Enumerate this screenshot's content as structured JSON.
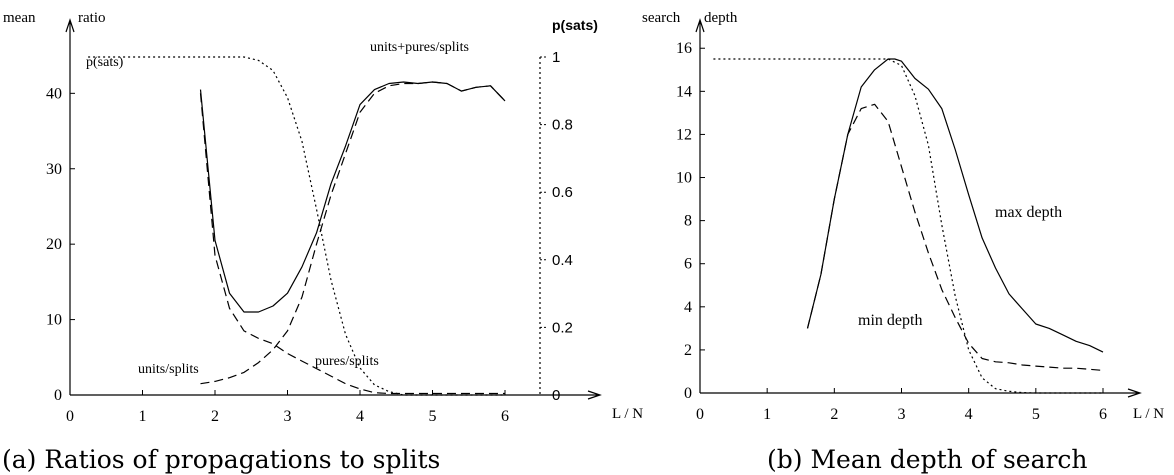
{
  "chart_data": [
    {
      "type": "line",
      "caption": "(a) Ratios of propagations to splits",
      "ylabel_left_1": "mean",
      "ylabel_left_2": "ratio",
      "ylabel_right": "p(sats)",
      "xlabel": "L / N",
      "xlim": [
        0,
        6
      ],
      "ylim": [
        0,
        48
      ],
      "ylim_right": [
        0,
        1
      ],
      "x_ticks": [
        "0",
        "1",
        "2",
        "3",
        "4",
        "5",
        "6"
      ],
      "y_ticks": [
        "0",
        "10",
        "20",
        "30",
        "40"
      ],
      "y_ticks_right": [
        "0",
        "0.2",
        "0.4",
        "0.6",
        "0.8",
        "1"
      ],
      "series": [
        {
          "name": "units+pures/splits",
          "style": "solid",
          "x": [
            1.8,
            2.0,
            2.2,
            2.4,
            2.6,
            2.8,
            3.0,
            3.2,
            3.4,
            3.6,
            3.8,
            4.0,
            4.2,
            4.4,
            4.6,
            4.8,
            5.0,
            5.2,
            5.4,
            5.6,
            5.8,
            6.0
          ],
          "values": [
            40.5,
            20.5,
            13.5,
            11.0,
            11.0,
            11.8,
            13.5,
            17.0,
            21.5,
            28.0,
            33.0,
            38.5,
            40.5,
            41.3,
            41.5,
            41.3,
            41.5,
            41.3,
            40.3,
            40.8,
            41.0,
            39.0
          ]
        },
        {
          "name": "pures/splits",
          "style": "dashed",
          "x": [
            1.8,
            2.0,
            2.2,
            2.4,
            2.6,
            2.8,
            3.0,
            3.2,
            3.4,
            3.6,
            3.8,
            4.0,
            4.2,
            4.4,
            4.6,
            4.8,
            5.0,
            5.2,
            5.4,
            5.6,
            5.8,
            6.0
          ],
          "values": [
            40.0,
            18.5,
            11.5,
            8.5,
            7.5,
            6.8,
            5.5,
            4.5,
            3.5,
            2.5,
            1.5,
            0.8,
            0.3,
            0.2,
            0.2,
            0.2,
            0.2,
            0.2,
            0.2,
            0.2,
            0.2,
            0.2
          ]
        },
        {
          "name": "units/splits",
          "style": "dashed",
          "x": [
            1.8,
            2.0,
            2.2,
            2.4,
            2.6,
            2.8,
            3.0,
            3.2,
            3.4,
            3.6,
            3.8,
            4.0,
            4.2,
            4.4,
            4.6,
            4.8,
            5.0,
            5.2,
            5.4,
            5.6,
            5.8,
            6.0
          ],
          "values": [
            1.5,
            1.8,
            2.3,
            3.0,
            4.3,
            6.0,
            8.5,
            13.0,
            20.0,
            26.5,
            32.0,
            37.5,
            40.0,
            41.0,
            41.3,
            41.3,
            41.5,
            41.3,
            40.3,
            40.8,
            41.0,
            39.0
          ]
        },
        {
          "name": "p(sats)",
          "style": "dotted",
          "axis": "right",
          "x": [
            0.25,
            2.4,
            2.6,
            2.8,
            3.0,
            3.2,
            3.4,
            3.6,
            3.8,
            4.0,
            4.2,
            4.4,
            4.6,
            4.8,
            5.0,
            5.5,
            6.0
          ],
          "values": [
            1.0,
            1.0,
            0.99,
            0.96,
            0.88,
            0.75,
            0.55,
            0.34,
            0.18,
            0.08,
            0.03,
            0.01,
            0.0,
            0.0,
            0.0,
            0.0,
            0.0
          ]
        }
      ]
    },
    {
      "type": "line",
      "caption": "(b) Mean depth of search",
      "ylabel_left_1": "search",
      "ylabel_left_2": "depth",
      "xlabel": "L / N",
      "xlim": [
        0,
        6
      ],
      "ylim": [
        0,
        16.8
      ],
      "x_ticks": [
        "0",
        "1",
        "2",
        "3",
        "4",
        "5",
        "6"
      ],
      "y_ticks": [
        "0",
        "2",
        "4",
        "6",
        "8",
        "10",
        "12",
        "14",
        "16"
      ],
      "series": [
        {
          "name": "max depth",
          "style": "solid",
          "x": [
            1.6,
            1.8,
            2.0,
            2.2,
            2.4,
            2.6,
            2.8,
            2.9,
            3.0,
            3.2,
            3.4,
            3.6,
            3.8,
            4.0,
            4.2,
            4.4,
            4.6,
            4.8,
            5.0,
            5.2,
            5.4,
            5.6,
            5.8,
            6.0
          ],
          "values": [
            3.0,
            5.5,
            9.0,
            12.0,
            14.2,
            15.0,
            15.5,
            15.5,
            15.4,
            14.6,
            14.1,
            13.2,
            11.3,
            9.2,
            7.2,
            5.8,
            4.6,
            3.9,
            3.2,
            3.0,
            2.7,
            2.4,
            2.2,
            1.9
          ]
        },
        {
          "name": "min depth",
          "style": "dashed",
          "x": [
            1.6,
            1.8,
            2.0,
            2.2,
            2.4,
            2.6,
            2.8,
            3.0,
            3.2,
            3.4,
            3.6,
            3.8,
            4.0,
            4.2,
            4.4,
            4.6,
            4.8,
            5.0,
            5.2,
            5.4,
            5.6,
            5.8,
            6.0
          ],
          "values": [
            3.0,
            5.5,
            9.0,
            12.0,
            13.2,
            13.4,
            12.6,
            10.5,
            8.4,
            6.5,
            4.8,
            3.5,
            2.3,
            1.6,
            1.45,
            1.4,
            1.3,
            1.25,
            1.2,
            1.15,
            1.15,
            1.1,
            1.05
          ]
        },
        {
          "name": "p(sats)",
          "style": "dotted",
          "x": [
            0.2,
            2.8,
            3.0,
            3.2,
            3.4,
            3.6,
            3.8,
            4.0,
            4.2,
            4.4,
            4.6,
            4.8,
            5.0,
            5.5,
            6.0
          ],
          "values": [
            15.5,
            15.5,
            15.2,
            13.8,
            11.5,
            7.8,
            4.5,
            2.0,
            0.7,
            0.2,
            0.08,
            0.02,
            0.0,
            0.0,
            0.0
          ]
        }
      ],
      "annotations": [
        "max depth",
        "min depth"
      ]
    }
  ]
}
